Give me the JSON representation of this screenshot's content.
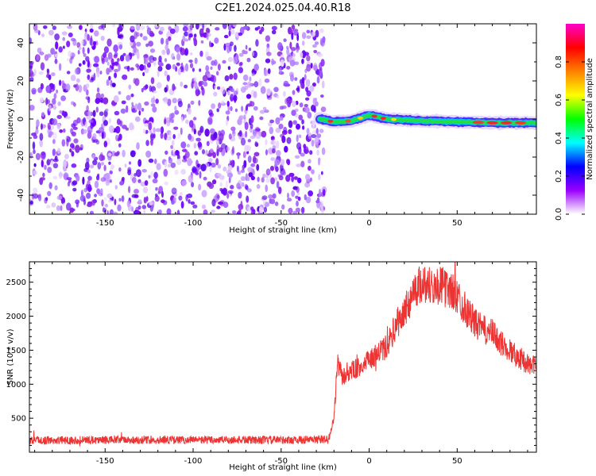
{
  "title": "C2E1.2024.025.04.40.R18",
  "chart_data": [
    {
      "type": "heatmap",
      "xlabel": "Height of straight line (km)",
      "ylabel": "Frequency (Hz)",
      "xlim": [
        -193,
        95
      ],
      "ylim": [
        -50,
        50
      ],
      "xticks": [
        -150,
        -100,
        -50,
        0,
        50
      ],
      "yticks": [
        -40,
        -20,
        0,
        20,
        40
      ],
      "noise_region_x": [
        -193,
        -28
      ],
      "signal_region_x": [
        -28,
        95
      ],
      "signal_frequency": [
        {
          "x": -28,
          "y": 0
        },
        {
          "x": -20,
          "y": -1.5
        },
        {
          "x": -10,
          "y": -1
        },
        {
          "x": 0,
          "y": 2
        },
        {
          "x": 10,
          "y": 0
        },
        {
          "x": 30,
          "y": -1
        },
        {
          "x": 50,
          "y": -1.5
        },
        {
          "x": 70,
          "y": -2
        },
        {
          "x": 95,
          "y": -2
        }
      ],
      "colorbar": {
        "label": "Normalized spectral amplitude",
        "range": [
          0,
          1
        ],
        "ticks": [
          "0.0",
          "0.2",
          "0.4",
          "0.6",
          "0.8"
        ],
        "colors": [
          "#ffffff",
          "#9900ff",
          "#0000ff",
          "#00ffff",
          "#00ff00",
          "#ffff00",
          "#ff8000",
          "#ff0000",
          "#ff00cc"
        ]
      }
    },
    {
      "type": "line",
      "xlabel": "Height of straight line (km)",
      "ylabel": "SNR (10 * v/v)",
      "xlim": [
        -193,
        95
      ],
      "ylim": [
        0,
        2800
      ],
      "xticks": [
        -150,
        -100,
        -50,
        0,
        50
      ],
      "yticks": [
        500,
        1000,
        1500,
        2000,
        2500
      ],
      "color": "#ee3333",
      "series": [
        {
          "x": [
            -193,
            -160,
            -120,
            -80,
            -40,
            -23,
            -20,
            -18,
            -15,
            -10,
            -5,
            0,
            5,
            10,
            15,
            20,
            25,
            30,
            35,
            40,
            45,
            50,
            55,
            60,
            65,
            70,
            75,
            80,
            85,
            90,
            95
          ],
          "y": [
            170,
            180,
            180,
            180,
            180,
            190,
            500,
            1300,
            1100,
            1200,
            1250,
            1350,
            1450,
            1550,
            1850,
            2050,
            2350,
            2500,
            2450,
            2450,
            2400,
            2300,
            2100,
            1900,
            1800,
            1750,
            1600,
            1500,
            1400,
            1300,
            1250
          ]
        }
      ]
    }
  ]
}
